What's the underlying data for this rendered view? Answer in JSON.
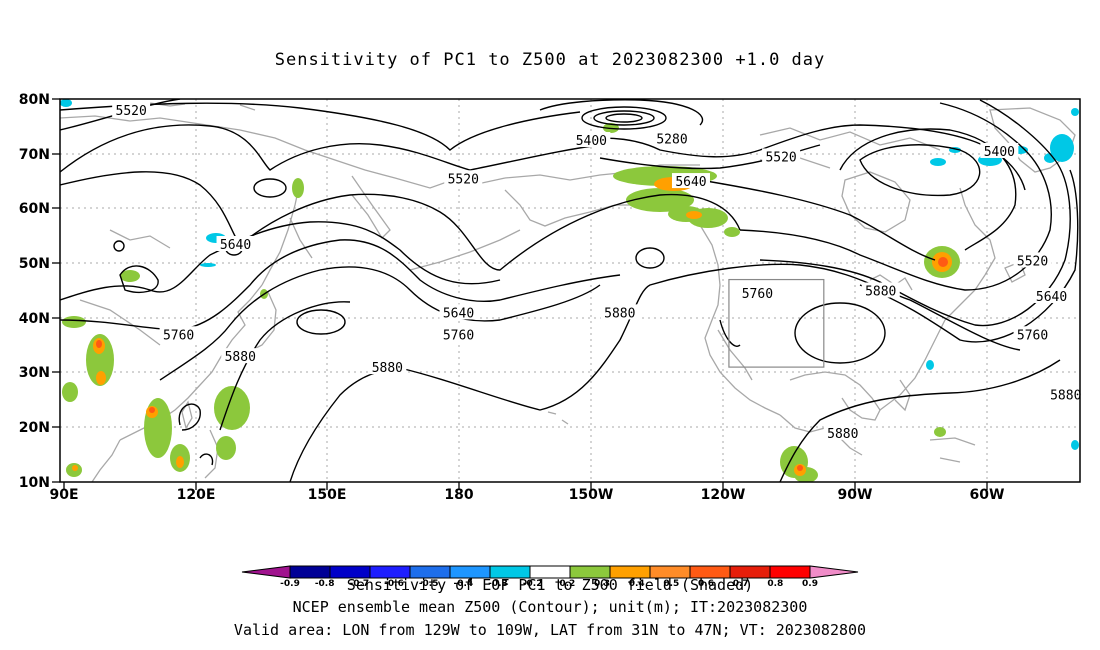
{
  "title": "Sensitivity of PC1 to Z500 at 2023082300 +1.0 day",
  "lat_labels": [
    "80N",
    "70N",
    "60N",
    "50N",
    "40N",
    "30N",
    "20N",
    "10N"
  ],
  "lon_labels": [
    "90E",
    "120E",
    "150E",
    "180",
    "150W",
    "120W",
    "90W",
    "60W"
  ],
  "contours": {
    "color": "#000000",
    "labels": [
      {
        "text": "5520",
        "lon": 105,
        "lat": 78
      },
      {
        "text": "5400",
        "lon": -158,
        "lat": 72.5
      },
      {
        "text": "5280",
        "lon": -141,
        "lat": 72.8
      },
      {
        "text": "5520",
        "lon": -118,
        "lat": 69.5
      },
      {
        "text": "5400",
        "lon": -72,
        "lat": 70.5
      },
      {
        "text": "5520",
        "lon": 175,
        "lat": 65.5
      },
      {
        "text": "5640",
        "lon": -137,
        "lat": 65
      },
      {
        "text": "5640",
        "lon": 127,
        "lat": 53.5
      },
      {
        "text": "5520",
        "lon": -65,
        "lat": 50.5
      },
      {
        "text": "5760",
        "lon": -123,
        "lat": 44.5
      },
      {
        "text": "5880",
        "lon": -97,
        "lat": 45
      },
      {
        "text": "5640",
        "lon": -61,
        "lat": 44
      },
      {
        "text": "5640",
        "lon": 174,
        "lat": 41
      },
      {
        "text": "5880",
        "lon": -152,
        "lat": 41
      },
      {
        "text": "5760",
        "lon": 115,
        "lat": 37
      },
      {
        "text": "5760",
        "lon": 174,
        "lat": 37
      },
      {
        "text": "5760",
        "lon": -65,
        "lat": 37
      },
      {
        "text": "5880",
        "lon": 128,
        "lat": 33
      },
      {
        "text": "5880",
        "lon": 159,
        "lat": 31
      },
      {
        "text": "5880",
        "lon": -58,
        "lat": 26
      },
      {
        "text": "5880",
        "lon": -105,
        "lat": 19
      }
    ]
  },
  "valid_area": {
    "lon_min": -129,
    "lon_max": -109,
    "lat_min": 31,
    "lat_max": 47
  },
  "colorbar": {
    "labels": [
      "-0.9",
      "-0.8",
      "-0.7",
      "-0.6",
      "-0.5",
      "-0.4",
      "-0.3",
      "-0.2",
      "0.2",
      "0.3",
      "0.4",
      "0.5",
      "0.6",
      "0.7",
      "0.8",
      "0.9"
    ],
    "colors": [
      "#a0138e",
      "#000096",
      "#0000c8",
      "#1e1eff",
      "#1e6eeb",
      "#1e96ff",
      "#00c8e6",
      "#ffffff",
      "#8cc83c",
      "#ffa000",
      "#ff8c28",
      "#ff5a14",
      "#e61e0a",
      "#ff0000",
      "#f08cc8"
    ]
  },
  "captions": {
    "line1": "Sensitivity of EOF PC1 to Z500 field (Shaded)",
    "line2": "NCEP ensemble mean Z500 (Contour); unit(m); IT:2023082300",
    "line3": "Valid area: LON from 129W to 109W, LAT from 31N to 47N; VT: 2023082800"
  }
}
